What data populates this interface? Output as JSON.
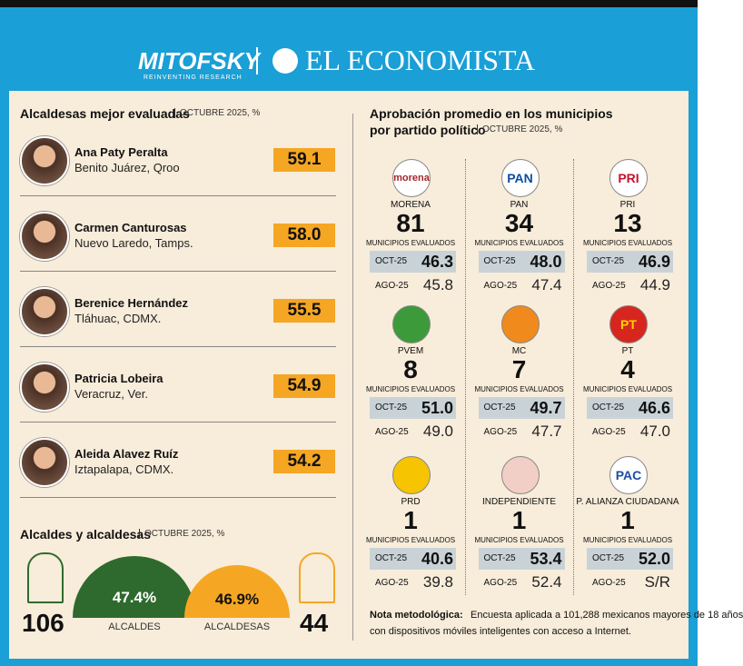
{
  "header": {
    "brand1": "MITOFSKY",
    "brand1_tagline": "REINVENTING RESEARCH",
    "brand2": "EL ECONOMISTA"
  },
  "left": {
    "title": "Alcaldesas mejor evaluadas",
    "subtitle": "OCTUBRE 2025, %",
    "mayors": [
      {
        "name": "Ana Paty Peralta",
        "place": "Benito Juárez, Qroo",
        "value": "59.1"
      },
      {
        "name": "Carmen Canturosas",
        "place": "Nuevo Laredo, Tamps.",
        "value": "58.0"
      },
      {
        "name": "Berenice Hernández",
        "place": "Tláhuac, CDMX.",
        "value": "55.5"
      },
      {
        "name": "Patricia Lobeira",
        "place": "Veracruz, Ver.",
        "value": "54.9"
      },
      {
        "name": "Aleida Alavez Ruíz",
        "place": "Iztapalapa, CDMX.",
        "value": "54.2"
      }
    ]
  },
  "totals": {
    "title": "Alcaldes y alcaldesas",
    "subtitle": "OCTUBRE 2025, %",
    "men": {
      "count": "106",
      "pct": "47.4%",
      "label": "ALCALDES"
    },
    "women": {
      "count": "44",
      "pct": "46.9%",
      "label": "ALCALDESAS"
    }
  },
  "right": {
    "title": "Aprobación promedio en los municipios",
    "title2": "por partido político",
    "subtitle": "OCTUBRE 2025, %",
    "parties": [
      {
        "logo": "morena",
        "name": "MORENA",
        "count": "81",
        "count_label": "MUNICIPIOS EVALUADOS",
        "current_label": "OCT-25",
        "current": "46.3",
        "previous_label": "AGO-25",
        "previous": "45.8"
      },
      {
        "logo": "PAN",
        "name": "PAN",
        "count": "34",
        "count_label": "MUNICIPIOS EVALUADOS",
        "current_label": "OCT-25",
        "current": "48.0",
        "previous_label": "AGO-25",
        "previous": "47.4"
      },
      {
        "logo": "PRI",
        "name": "PRI",
        "count": "13",
        "count_label": "MUNICIPIOS EVALUADOS",
        "current_label": "OCT-25",
        "current": "46.9",
        "previous_label": "AGO-25",
        "previous": "44.9"
      },
      {
        "name": "PVEM",
        "count": "8",
        "count_label": "MUNICIPIOS EVALUADOS",
        "current_label": "OCT-25",
        "current": "51.0",
        "previous_label": "AGO-25",
        "previous": "49.0"
      },
      {
        "name": "MC",
        "count": "7",
        "count_label": "MUNICIPIOS EVALUADOS",
        "current_label": "OCT-25",
        "current": "49.7",
        "previous_label": "AGO-25",
        "previous": "47.7"
      },
      {
        "logo": "PT",
        "name": "PT",
        "count": "4",
        "count_label": "MUNICIPIOS EVALUADOS",
        "current_label": "OCT-25",
        "current": "46.6",
        "previous_label": "AGO-25",
        "previous": "47.0"
      },
      {
        "name": "PRD",
        "count": "1",
        "count_label": "MUNICIPIOS EVALUADOS",
        "current_label": "OCT-25",
        "current": "40.6",
        "previous_label": "AGO-25",
        "previous": "39.8"
      },
      {
        "name": "INDEPENDIENTE",
        "count": "1",
        "count_label": "MUNICIPIOS EVALUADOS",
        "current_label": "OCT-25",
        "current": "53.4",
        "previous_label": "AGO-25",
        "previous": "52.4"
      },
      {
        "logo": "PAC",
        "name": "P. ALIANZA CIUDADANA",
        "count": "1",
        "count_label": "MUNICIPIOS EVALUADOS",
        "current_label": "OCT-25",
        "current": "52.0",
        "previous_label": "AGO-25",
        "previous": "S/R"
      }
    ]
  },
  "note": {
    "label": "Nota metodológica:",
    "text": "Encuesta aplicada a 101,288 mexicanos mayores de 18 años",
    "text2": "con dispositivos móviles inteligentes con acceso a Internet."
  }
}
